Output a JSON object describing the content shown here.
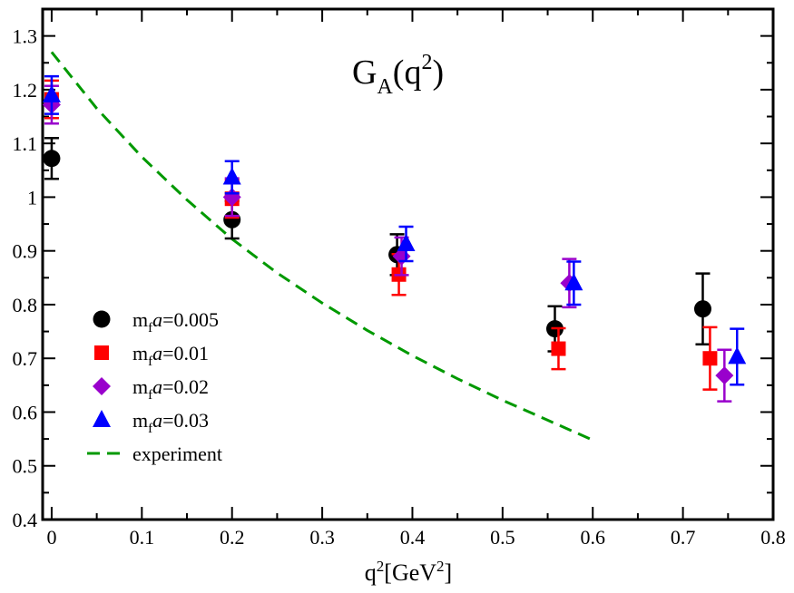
{
  "chart_data": {
    "type": "scatter",
    "title": "G",
    "title_sub": "A",
    "title_arg_open": "(q",
    "title_arg_sup": "2",
    "title_arg_close": ")",
    "xlabel": "q",
    "xlabel_sup": "2",
    "xlabel_unit_open": "[GeV",
    "xlabel_unit_sup": "2",
    "xlabel_unit_close": "]",
    "xlim": [
      -0.01,
      0.8
    ],
    "ylim": [
      0.4,
      1.35
    ],
    "xticks": [
      0,
      0.1,
      0.2,
      0.3,
      0.4,
      0.5,
      0.6,
      0.7,
      0.8
    ],
    "xtick_labels": [
      "0",
      "0.1",
      "0.2",
      "0.3",
      "0.4",
      "0.5",
      "0.6",
      "0.7",
      "0.8"
    ],
    "yticks": [
      0.4,
      0.5,
      0.6,
      0.7,
      0.8,
      0.9,
      1.0,
      1.1,
      1.2,
      1.3
    ],
    "ytick_labels": [
      "0.4",
      "0.5",
      "0.6",
      "0.7",
      "0.8",
      "0.9",
      "1",
      "1.1",
      "1.2",
      "1.3"
    ],
    "grid": false,
    "legend_position": "bottom-left",
    "series": [
      {
        "label_main": "m",
        "label_sub": "f",
        "label_var": "a",
        "label_value": "=0.005",
        "marker": "circle",
        "color": "#000000",
        "points": [
          {
            "x": 0.0,
            "y": 1.072,
            "err": 0.038
          },
          {
            "x": 0.2,
            "y": 0.958,
            "err": 0.035
          },
          {
            "x": 0.383,
            "y": 0.893,
            "err": 0.038
          },
          {
            "x": 0.558,
            "y": 0.755,
            "err": 0.042
          },
          {
            "x": 0.722,
            "y": 0.792,
            "err": 0.066
          }
        ]
      },
      {
        "label_main": "m",
        "label_sub": "f",
        "label_var": "a",
        "label_value": "=0.01",
        "marker": "square",
        "color": "#ff0000",
        "points": [
          {
            "x": 0.0,
            "y": 1.182,
            "err": 0.035
          },
          {
            "x": 0.2,
            "y": 0.997,
            "err": 0.035
          },
          {
            "x": 0.385,
            "y": 0.856,
            "err": 0.038
          },
          {
            "x": 0.562,
            "y": 0.718,
            "err": 0.038
          },
          {
            "x": 0.73,
            "y": 0.7,
            "err": 0.058
          }
        ]
      },
      {
        "label_main": "m",
        "label_sub": "f",
        "label_var": "a",
        "label_value": "=0.02",
        "marker": "diamond",
        "color": "#9900cc",
        "points": [
          {
            "x": 0.0,
            "y": 1.172,
            "err": 0.035
          },
          {
            "x": 0.2,
            "y": 1.0,
            "err": 0.035
          },
          {
            "x": 0.388,
            "y": 0.89,
            "err": 0.035
          },
          {
            "x": 0.574,
            "y": 0.84,
            "err": 0.045
          },
          {
            "x": 0.746,
            "y": 0.668,
            "err": 0.048
          }
        ]
      },
      {
        "label_main": "m",
        "label_sub": "f",
        "label_var": "a",
        "label_value": "=0.03",
        "marker": "triangle",
        "color": "#0000ff",
        "points": [
          {
            "x": 0.0,
            "y": 1.19,
            "err": 0.035
          },
          {
            "x": 0.2,
            "y": 1.037,
            "err": 0.03
          },
          {
            "x": 0.393,
            "y": 0.913,
            "err": 0.032
          },
          {
            "x": 0.579,
            "y": 0.84,
            "err": 0.04
          },
          {
            "x": 0.76,
            "y": 0.703,
            "err": 0.052
          }
        ]
      }
    ],
    "curve": {
      "label": "experiment",
      "color": "#009900",
      "style": "dashed",
      "points": [
        {
          "x": 0.0,
          "y": 1.27
        },
        {
          "x": 0.05,
          "y": 1.165
        },
        {
          "x": 0.1,
          "y": 1.075
        },
        {
          "x": 0.15,
          "y": 0.995
        },
        {
          "x": 0.2,
          "y": 0.922
        },
        {
          "x": 0.25,
          "y": 0.859
        },
        {
          "x": 0.3,
          "y": 0.803
        },
        {
          "x": 0.35,
          "y": 0.752
        },
        {
          "x": 0.4,
          "y": 0.705
        },
        {
          "x": 0.45,
          "y": 0.662
        },
        {
          "x": 0.5,
          "y": 0.622
        },
        {
          "x": 0.55,
          "y": 0.585
        },
        {
          "x": 0.6,
          "y": 0.548
        }
      ]
    }
  }
}
